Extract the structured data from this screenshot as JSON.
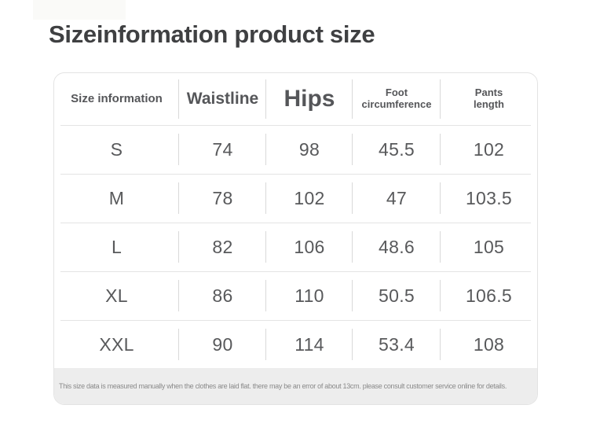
{
  "page": {
    "title": "Sizeinformation product size"
  },
  "size_table": {
    "columns": [
      "Size information",
      "Waistline",
      "Hips",
      "Foot\ncircumference",
      "Pants\nlength"
    ],
    "rows": [
      {
        "size": "S",
        "waistline": "74",
        "hips": "98",
        "foot_circumference": "45.5",
        "pants_length": "102"
      },
      {
        "size": "M",
        "waistline": "78",
        "hips": "102",
        "foot_circumference": "47",
        "pants_length": "103.5"
      },
      {
        "size": "L",
        "waistline": "82",
        "hips": "106",
        "foot_circumference": "48.6",
        "pants_length": "105"
      },
      {
        "size": "XL",
        "waistline": "86",
        "hips": "110",
        "foot_circumference": "50.5",
        "pants_length": "106.5"
      },
      {
        "size": "XXL",
        "waistline": "90",
        "hips": "114",
        "foot_circumference": "53.4",
        "pants_length": "108"
      }
    ],
    "note": "This size data is measured manually when the clothes are laid flat. there may be an error of about 13cm. please consult customer service online for details."
  },
  "colors": {
    "title_text": "#3f4042",
    "header_text": "#555659",
    "cell_text": "#58595b",
    "vertical_divider": "#d9d9d9",
    "row_divider": "#e4e4e4",
    "card_border": "#e3e3e3",
    "note_background": "#ededed",
    "note_text": "#8a8a8a",
    "page_background": "#ffffff"
  }
}
